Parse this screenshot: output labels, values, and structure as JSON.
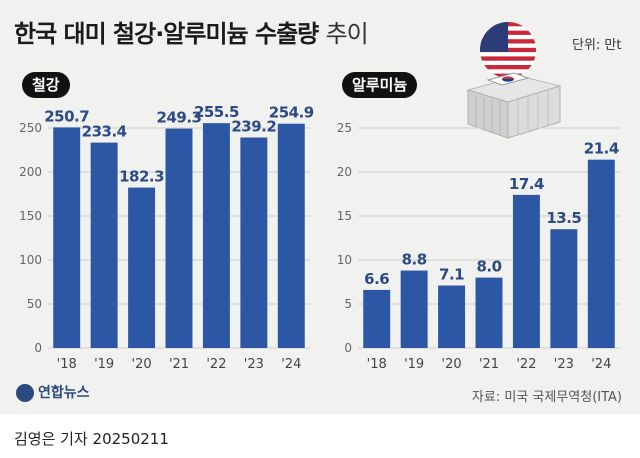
{
  "header": {
    "title_bold": "한국 대미 철강·알루미늄 수출량",
    "title_thin": "추이",
    "unit": "단위: 만t"
  },
  "colors": {
    "bar": "#2b57a5",
    "grid": "#cfcfcf",
    "tick": "#666666",
    "value": "#2b4a86"
  },
  "chart_data": [
    {
      "type": "bar",
      "label": "철강",
      "categories": [
        "'18",
        "'19",
        "'20",
        "'21",
        "'22",
        "'23",
        "'24"
      ],
      "values": [
        250.7,
        233.4,
        182.3,
        249.3,
        255.5,
        239.2,
        254.9
      ],
      "value_labels": [
        "250.7",
        "233.4",
        "182.3",
        "249.3",
        "255.5",
        "239.2",
        "254.9"
      ],
      "ylim": [
        0,
        250
      ],
      "yticks": [
        0,
        50,
        100,
        150,
        200,
        250
      ],
      "ytick_labels": [
        "0",
        "50",
        "100",
        "150",
        "200",
        "250"
      ],
      "grid": true
    },
    {
      "type": "bar",
      "label": "알루미늄",
      "categories": [
        "'18",
        "'19",
        "'20",
        "'21",
        "'22",
        "'23",
        "'24"
      ],
      "values": [
        6.6,
        8.8,
        7.1,
        8.0,
        17.4,
        13.5,
        21.4
      ],
      "value_labels": [
        "6.6",
        "8.8",
        "7.1",
        "8.0",
        "17.4",
        "13.5",
        "21.4"
      ],
      "ylim": [
        0,
        25
      ],
      "yticks": [
        0,
        5,
        10,
        15,
        20,
        25
      ],
      "ytick_labels": [
        "0",
        "5",
        "10",
        "15",
        "20",
        "25"
      ],
      "grid": true
    }
  ],
  "footer": {
    "logo": "연합뉴스",
    "source": "자료: 미국 국제무역청(ITA)",
    "byline": "김영은 기자 20250211"
  }
}
